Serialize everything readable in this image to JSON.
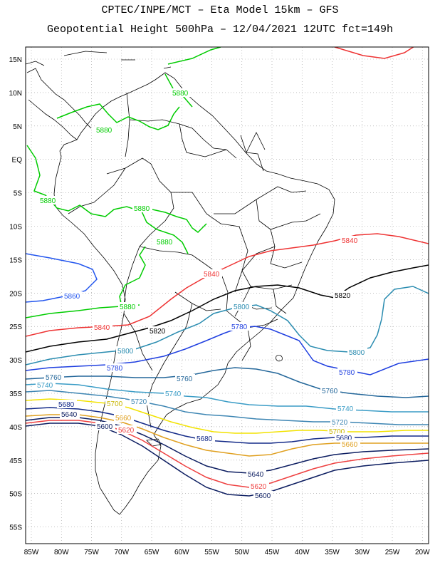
{
  "title_line1": "CPTEC/INPE/MCT –  Eta Model 15km – GFS",
  "title_line2": "Geopotential Height 500hPa – 12/04/2021 12UTC fct=149h",
  "lat_labels": [
    "15N",
    "10N",
    "5N",
    "EQ",
    "5S",
    "10S",
    "15S",
    "20S",
    "25S",
    "30S",
    "35S",
    "40S",
    "45S",
    "50S",
    "55S"
  ],
  "lon_labels": [
    "85W",
    "80W",
    "75W",
    "70W",
    "65W",
    "60W",
    "55W",
    "50W",
    "45W",
    "40W",
    "35W",
    "30W",
    "25W",
    "20W"
  ],
  "contour_levels": [
    {
      "value": "5880",
      "color": "#00cc00"
    },
    {
      "value": "5860",
      "color": "#2255ee"
    },
    {
      "value": "5840",
      "color": "#ee3333"
    },
    {
      "value": "5820",
      "color": "#000000"
    },
    {
      "value": "5800",
      "color": "#2a8cb0"
    },
    {
      "value": "5780",
      "color": "#1f3fe0"
    },
    {
      "value": "5760",
      "color": "#24679a"
    },
    {
      "value": "5740",
      "color": "#3a9cc6"
    },
    {
      "value": "5720",
      "color": "#3e86b3"
    },
    {
      "value": "5700",
      "color": "#f2e200"
    },
    {
      "value": "5680",
      "color": "#132a88"
    },
    {
      "value": "5660",
      "color": "#e0a020"
    },
    {
      "value": "5640",
      "color": "#0b1c60"
    },
    {
      "value": "5620",
      "color": "#ee4040"
    },
    {
      "value": "5600",
      "color": "#0b1c60"
    }
  ],
  "contour_labels": [
    {
      "text": "5880",
      "color": "#00cc00"
    },
    {
      "text": "5880",
      "color": "#00cc00"
    },
    {
      "text": "5880",
      "color": "#00cc00"
    },
    {
      "text": "5880",
      "color": "#00cc00"
    },
    {
      "text": "5880",
      "color": "#00cc00"
    },
    {
      "text": "5880",
      "color": "#00cc00"
    },
    {
      "text": "5860",
      "color": "#2255ee"
    },
    {
      "text": "5840",
      "color": "#ee3333"
    },
    {
      "text": "5840",
      "color": "#ee3333"
    },
    {
      "text": "5840",
      "color": "#ee3333"
    },
    {
      "text": "5820",
      "color": "#000000"
    },
    {
      "text": "5820",
      "color": "#000000"
    },
    {
      "text": "5800",
      "color": "#2a8cb0"
    },
    {
      "text": "5800",
      "color": "#2a8cb0"
    },
    {
      "text": "5800",
      "color": "#2a8cb0"
    },
    {
      "text": "5780",
      "color": "#1f3fe0"
    },
    {
      "text": "5780",
      "color": "#1f3fe0"
    },
    {
      "text": "5780",
      "color": "#1f3fe0"
    },
    {
      "text": "5760",
      "color": "#24679a"
    },
    {
      "text": "5760",
      "color": "#24679a"
    },
    {
      "text": "5760",
      "color": "#24679a"
    },
    {
      "text": "5740",
      "color": "#3a9cc6"
    },
    {
      "text": "5740",
      "color": "#3a9cc6"
    },
    {
      "text": "5740",
      "color": "#3a9cc6"
    },
    {
      "text": "5720",
      "color": "#3e86b3"
    },
    {
      "text": "5720",
      "color": "#3e86b3"
    },
    {
      "text": "5700",
      "color": "#c8b400"
    },
    {
      "text": "5700",
      "color": "#c8b400"
    },
    {
      "text": "5680",
      "color": "#132a88"
    },
    {
      "text": "5680",
      "color": "#132a88"
    },
    {
      "text": "5680",
      "color": "#132a88"
    },
    {
      "text": "5660",
      "color": "#e0a020"
    },
    {
      "text": "5660",
      "color": "#e0a020"
    },
    {
      "text": "5640",
      "color": "#0b1c60"
    },
    {
      "text": "5640",
      "color": "#0b1c60"
    },
    {
      "text": "5620",
      "color": "#ee4040"
    },
    {
      "text": "5620",
      "color": "#ee4040"
    },
    {
      "text": "5600",
      "color": "#0b1c60"
    },
    {
      "text": "5600",
      "color": "#0b1c60"
    }
  ],
  "colors": {
    "background": "#ffffff",
    "grid": "#9a9a9a",
    "coastline": "#000000"
  }
}
